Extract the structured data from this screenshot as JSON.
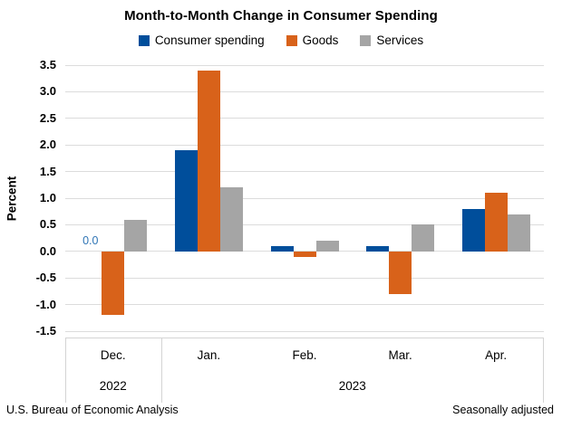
{
  "chart_data": {
    "type": "bar",
    "title": "Month-to-Month Change in Consumer Spending",
    "xlabel": "",
    "ylabel": "Percent",
    "ylim": [
      -1.5,
      3.5
    ],
    "ytick_labels": [
      "3.5",
      "3.0",
      "2.5",
      "2.0",
      "1.5",
      "1.0",
      "0.5",
      "0.0",
      "-0.5",
      "-1.0",
      "-1.5"
    ],
    "categories": [
      "Dec.",
      "Jan.",
      "Feb.",
      "Mar.",
      "Apr."
    ],
    "year_groups": [
      {
        "label": "2022",
        "span": 1
      },
      {
        "label": "2023",
        "span": 4
      }
    ],
    "series": [
      {
        "name": "Consumer spending",
        "color": "#004E9B",
        "values": [
          0.0,
          1.9,
          0.1,
          0.1,
          0.8
        ]
      },
      {
        "name": "Goods",
        "color": "#D8621A",
        "values": [
          -1.2,
          3.4,
          -0.1,
          -0.8,
          1.1
        ]
      },
      {
        "name": "Services",
        "color": "#A5A5A5",
        "values": [
          0.6,
          1.2,
          0.2,
          0.5,
          0.7
        ]
      }
    ],
    "data_labels": [
      {
        "series": 0,
        "category": 0,
        "text": "0.0",
        "color": "#2E74B5"
      }
    ],
    "grid": true,
    "legend_position": "top",
    "gridline_color": "#DCDCDC",
    "axis_line_color": "#D4D4D4"
  },
  "footer": {
    "source": "U.S. Bureau of Economic Analysis",
    "note": "Seasonally adjusted"
  }
}
